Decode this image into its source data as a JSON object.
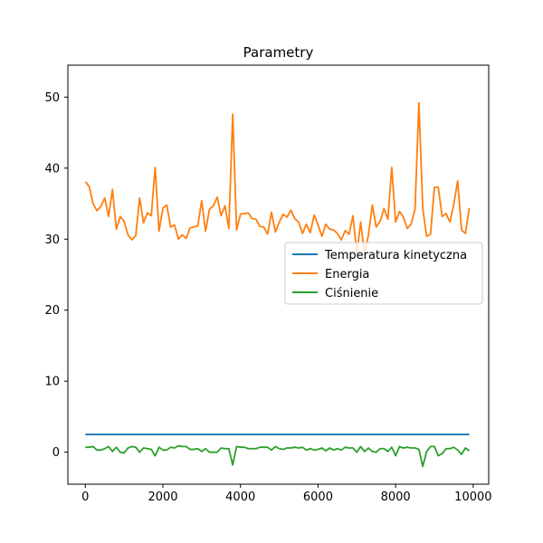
{
  "chart_data": {
    "type": "line",
    "title": "Parametry",
    "xlabel": "",
    "ylabel": "",
    "xlim": [
      -450,
      10400
    ],
    "ylim": [
      -4.5,
      54.5
    ],
    "xticks": [
      0,
      2000,
      4000,
      6000,
      8000,
      10000
    ],
    "yticks": [
      0,
      10,
      20,
      30,
      40,
      50
    ],
    "grid": false,
    "legend_position": "center-right",
    "x": [
      0,
      100,
      200,
      300,
      400,
      500,
      600,
      700,
      800,
      900,
      1000,
      1100,
      1200,
      1300,
      1400,
      1500,
      1600,
      1700,
      1800,
      1900,
      2000,
      2100,
      2200,
      2300,
      2400,
      2500,
      2600,
      2700,
      2800,
      2900,
      3000,
      3100,
      3200,
      3300,
      3400,
      3500,
      3600,
      3700,
      3800,
      3900,
      4000,
      4100,
      4200,
      4300,
      4400,
      4500,
      4600,
      4700,
      4800,
      4900,
      5000,
      5100,
      5200,
      5300,
      5400,
      5500,
      5600,
      5700,
      5800,
      5900,
      6000,
      6100,
      6200,
      6300,
      6400,
      6500,
      6600,
      6700,
      6800,
      6900,
      7000,
      7100,
      7200,
      7300,
      7400,
      7500,
      7600,
      7700,
      7800,
      7900,
      8000,
      8100,
      8200,
      8300,
      8400,
      8500,
      8600,
      8700,
      8800,
      8900,
      9000,
      9100,
      9200,
      9300,
      9400,
      9500,
      9600,
      9700,
      9800,
      9900
    ],
    "series": [
      {
        "name": "Temperatura kinetyczna",
        "color": "#1f77b4",
        "values": [
          2.5,
          2.5,
          2.5,
          2.5,
          2.5,
          2.5,
          2.5,
          2.5,
          2.5,
          2.5,
          2.5,
          2.5,
          2.5,
          2.5,
          2.5,
          2.5,
          2.5,
          2.5,
          2.5,
          2.5,
          2.5,
          2.5,
          2.5,
          2.5,
          2.5,
          2.5,
          2.5,
          2.5,
          2.5,
          2.5,
          2.5,
          2.5,
          2.5,
          2.5,
          2.5,
          2.5,
          2.5,
          2.5,
          2.5,
          2.5,
          2.5,
          2.5,
          2.5,
          2.5,
          2.5,
          2.5,
          2.5,
          2.5,
          2.5,
          2.5,
          2.5,
          2.5,
          2.5,
          2.5,
          2.5,
          2.5,
          2.5,
          2.5,
          2.5,
          2.5,
          2.5,
          2.5,
          2.5,
          2.5,
          2.5,
          2.5,
          2.5,
          2.5,
          2.5,
          2.5,
          2.5,
          2.5,
          2.5,
          2.5,
          2.5,
          2.5,
          2.5,
          2.5,
          2.5,
          2.5,
          2.5,
          2.5,
          2.5,
          2.5,
          2.5,
          2.5,
          2.5,
          2.5,
          2.5,
          2.5,
          2.5,
          2.5,
          2.5,
          2.5,
          2.5,
          2.5,
          2.5,
          2.5,
          2.5,
          2.5
        ]
      },
      {
        "name": "Energia",
        "color": "#ff7f0e",
        "values": [
          38.1,
          37.4,
          35.0,
          34.0,
          34.6,
          35.8,
          33.2,
          37.0,
          31.4,
          33.2,
          32.5,
          30.6,
          29.9,
          30.5,
          35.8,
          32.3,
          33.7,
          33.3,
          40.1,
          31.1,
          34.4,
          34.8,
          31.7,
          32.0,
          30.0,
          30.6,
          30.1,
          31.6,
          31.7,
          31.9,
          35.4,
          31.1,
          34.2,
          34.7,
          35.9,
          33.3,
          34.7,
          31.5,
          47.6,
          31.3,
          33.5,
          33.6,
          33.7,
          32.9,
          32.8,
          31.8,
          31.7,
          30.7,
          33.8,
          31.0,
          32.4,
          33.5,
          33.1,
          34.1,
          32.9,
          32.4,
          30.8,
          32.1,
          30.9,
          33.4,
          32.0,
          30.4,
          32.1,
          31.4,
          31.3,
          30.8,
          29.9,
          31.2,
          30.7,
          33.3,
          28.0,
          32.4,
          27.9,
          30.6,
          34.8,
          31.7,
          32.5,
          34.3,
          32.8,
          40.1,
          32.4,
          33.9,
          33.1,
          31.5,
          32.1,
          34.2,
          49.2,
          34.3,
          30.4,
          30.7,
          37.3,
          37.3,
          33.2,
          33.6,
          32.4,
          34.9,
          38.2,
          31.3,
          30.8,
          34.4
        ]
      },
      {
        "name": "Ciśnienie",
        "color": "#2ca02c",
        "values": [
          0.7,
          0.7,
          0.8,
          0.3,
          0.3,
          0.5,
          0.8,
          0.1,
          0.7,
          0.0,
          -0.1,
          0.6,
          0.8,
          0.7,
          0.0,
          0.6,
          0.5,
          0.4,
          -0.5,
          0.7,
          0.3,
          0.3,
          0.7,
          0.6,
          0.9,
          0.8,
          0.8,
          0.4,
          0.4,
          0.5,
          0.1,
          0.5,
          0.0,
          0.0,
          0.0,
          0.6,
          0.5,
          0.5,
          -1.8,
          0.8,
          0.7,
          0.7,
          0.5,
          0.5,
          0.5,
          0.7,
          0.7,
          0.7,
          0.3,
          0.8,
          0.5,
          0.4,
          0.6,
          0.6,
          0.7,
          0.6,
          0.7,
          0.3,
          0.5,
          0.3,
          0.4,
          0.6,
          0.2,
          0.6,
          0.3,
          0.5,
          0.3,
          0.7,
          0.6,
          0.6,
          0.0,
          0.8,
          0.1,
          0.6,
          0.1,
          0.0,
          0.5,
          0.5,
          0.1,
          0.7,
          -0.5,
          0.8,
          0.6,
          0.7,
          0.6,
          0.6,
          0.4,
          -2.0,
          0.1,
          0.8,
          0.8,
          -0.5,
          -0.2,
          0.5,
          0.5,
          0.7,
          0.3,
          -0.3,
          0.6,
          0.2
        ]
      }
    ]
  }
}
